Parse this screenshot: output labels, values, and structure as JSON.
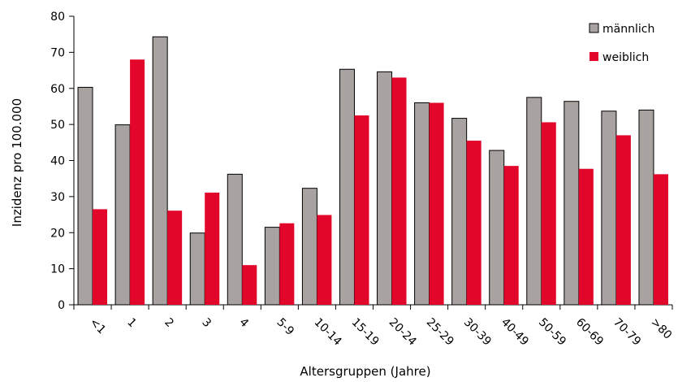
{
  "chart_data": {
    "type": "bar",
    "categories": [
      "<1",
      "1",
      "2",
      "3",
      "4",
      "5-9",
      "10-14",
      "15-19",
      "20-24",
      "25-29",
      "30-39",
      "40-49",
      "50-59",
      "60-69",
      "70-79",
      ">80"
    ],
    "series": [
      {
        "name": "männlich",
        "color": "#a8a3a0",
        "values": [
          60.3,
          49.9,
          74.3,
          19.9,
          36.2,
          21.5,
          32.3,
          65.3,
          64.6,
          56.0,
          51.7,
          42.8,
          57.5,
          56.4,
          53.7,
          54.0
        ]
      },
      {
        "name": "weiblich",
        "color": "#e3062b",
        "values": [
          26.5,
          68.0,
          26.1,
          31.1,
          11.0,
          22.6,
          24.9,
          52.5,
          63.0,
          56.0,
          45.5,
          38.5,
          50.6,
          37.7,
          47.0,
          36.2
        ]
      }
    ],
    "ylabel": "Inzidenz pro 100.000",
    "xlabel": "Altersgruppen (Jahre)",
    "ylim": [
      0,
      80
    ],
    "yticks": [
      0,
      10,
      20,
      30,
      40,
      50,
      60,
      70,
      80
    ],
    "grid": false,
    "legend_position": "top-right"
  }
}
